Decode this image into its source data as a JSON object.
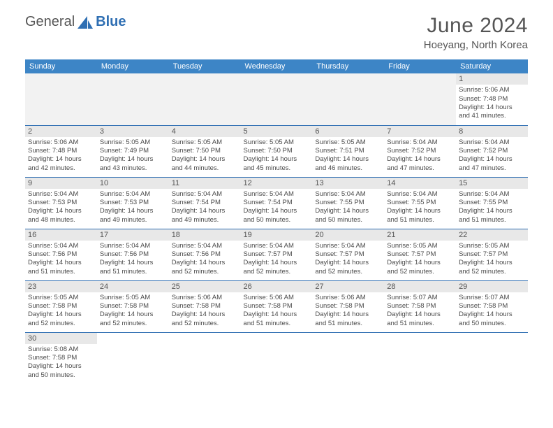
{
  "logo": {
    "part1": "General",
    "part2": "Blue"
  },
  "title": {
    "month": "June 2024",
    "location": "Hoeyang, North Korea"
  },
  "day_headers": [
    "Sunday",
    "Monday",
    "Tuesday",
    "Wednesday",
    "Thursday",
    "Friday",
    "Saturday"
  ],
  "colors": {
    "header_bg": "#3d85c6",
    "header_text": "#ffffff",
    "border": "#2f6fb3",
    "daynum_bg": "#e8e8e8",
    "body_text": "#4a4a4a",
    "blank_bg": "#f2f2f2"
  },
  "first_weekday": 6,
  "days": [
    {
      "n": 1,
      "sr": "5:06 AM",
      "ss": "7:48 PM",
      "dl": "14 hours and 41 minutes."
    },
    {
      "n": 2,
      "sr": "5:06 AM",
      "ss": "7:48 PM",
      "dl": "14 hours and 42 minutes."
    },
    {
      "n": 3,
      "sr": "5:05 AM",
      "ss": "7:49 PM",
      "dl": "14 hours and 43 minutes."
    },
    {
      "n": 4,
      "sr": "5:05 AM",
      "ss": "7:50 PM",
      "dl": "14 hours and 44 minutes."
    },
    {
      "n": 5,
      "sr": "5:05 AM",
      "ss": "7:50 PM",
      "dl": "14 hours and 45 minutes."
    },
    {
      "n": 6,
      "sr": "5:05 AM",
      "ss": "7:51 PM",
      "dl": "14 hours and 46 minutes."
    },
    {
      "n": 7,
      "sr": "5:04 AM",
      "ss": "7:52 PM",
      "dl": "14 hours and 47 minutes."
    },
    {
      "n": 8,
      "sr": "5:04 AM",
      "ss": "7:52 PM",
      "dl": "14 hours and 47 minutes."
    },
    {
      "n": 9,
      "sr": "5:04 AM",
      "ss": "7:53 PM",
      "dl": "14 hours and 48 minutes."
    },
    {
      "n": 10,
      "sr": "5:04 AM",
      "ss": "7:53 PM",
      "dl": "14 hours and 49 minutes."
    },
    {
      "n": 11,
      "sr": "5:04 AM",
      "ss": "7:54 PM",
      "dl": "14 hours and 49 minutes."
    },
    {
      "n": 12,
      "sr": "5:04 AM",
      "ss": "7:54 PM",
      "dl": "14 hours and 50 minutes."
    },
    {
      "n": 13,
      "sr": "5:04 AM",
      "ss": "7:55 PM",
      "dl": "14 hours and 50 minutes."
    },
    {
      "n": 14,
      "sr": "5:04 AM",
      "ss": "7:55 PM",
      "dl": "14 hours and 51 minutes."
    },
    {
      "n": 15,
      "sr": "5:04 AM",
      "ss": "7:55 PM",
      "dl": "14 hours and 51 minutes."
    },
    {
      "n": 16,
      "sr": "5:04 AM",
      "ss": "7:56 PM",
      "dl": "14 hours and 51 minutes."
    },
    {
      "n": 17,
      "sr": "5:04 AM",
      "ss": "7:56 PM",
      "dl": "14 hours and 51 minutes."
    },
    {
      "n": 18,
      "sr": "5:04 AM",
      "ss": "7:56 PM",
      "dl": "14 hours and 52 minutes."
    },
    {
      "n": 19,
      "sr": "5:04 AM",
      "ss": "7:57 PM",
      "dl": "14 hours and 52 minutes."
    },
    {
      "n": 20,
      "sr": "5:04 AM",
      "ss": "7:57 PM",
      "dl": "14 hours and 52 minutes."
    },
    {
      "n": 21,
      "sr": "5:05 AM",
      "ss": "7:57 PM",
      "dl": "14 hours and 52 minutes."
    },
    {
      "n": 22,
      "sr": "5:05 AM",
      "ss": "7:57 PM",
      "dl": "14 hours and 52 minutes."
    },
    {
      "n": 23,
      "sr": "5:05 AM",
      "ss": "7:58 PM",
      "dl": "14 hours and 52 minutes."
    },
    {
      "n": 24,
      "sr": "5:05 AM",
      "ss": "7:58 PM",
      "dl": "14 hours and 52 minutes."
    },
    {
      "n": 25,
      "sr": "5:06 AM",
      "ss": "7:58 PM",
      "dl": "14 hours and 52 minutes."
    },
    {
      "n": 26,
      "sr": "5:06 AM",
      "ss": "7:58 PM",
      "dl": "14 hours and 51 minutes."
    },
    {
      "n": 27,
      "sr": "5:06 AM",
      "ss": "7:58 PM",
      "dl": "14 hours and 51 minutes."
    },
    {
      "n": 28,
      "sr": "5:07 AM",
      "ss": "7:58 PM",
      "dl": "14 hours and 51 minutes."
    },
    {
      "n": 29,
      "sr": "5:07 AM",
      "ss": "7:58 PM",
      "dl": "14 hours and 50 minutes."
    },
    {
      "n": 30,
      "sr": "5:08 AM",
      "ss": "7:58 PM",
      "dl": "14 hours and 50 minutes."
    }
  ],
  "labels": {
    "sunrise": "Sunrise:",
    "sunset": "Sunset:",
    "daylight": "Daylight:"
  }
}
